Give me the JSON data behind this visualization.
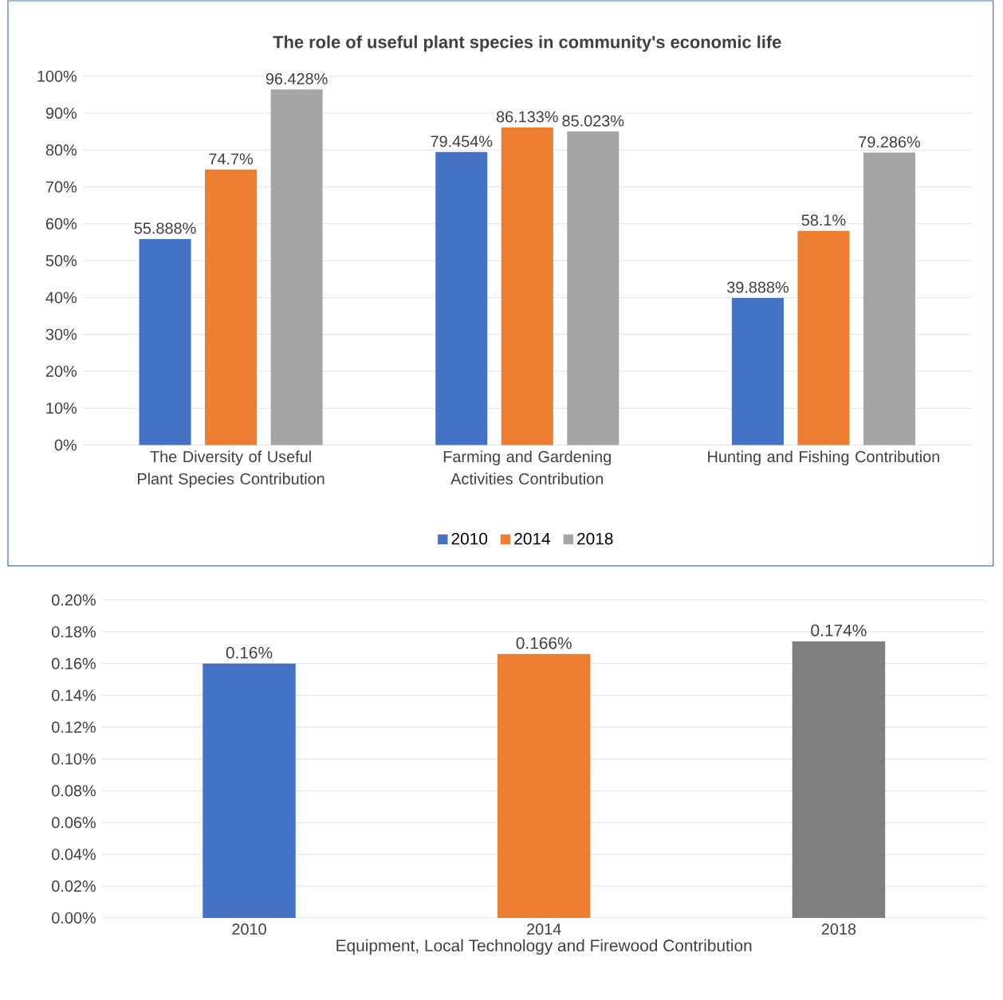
{
  "chart_data": [
    {
      "type": "bar",
      "title": "The role of useful plant species in community's economic life",
      "categories": [
        "The Diversity of Useful Plant Species Contribution",
        "Farming and Gardening Activities Contribution",
        "Hunting and Fishing Contribution"
      ],
      "series": [
        {
          "name": "2010",
          "color": "#4472c4",
          "values": [
            55.888,
            79.454,
            39.888
          ],
          "value_labels": [
            "55.888%",
            "79.454%",
            "39.888%"
          ]
        },
        {
          "name": "2014",
          "color": "#ed7d31",
          "values": [
            74.7,
            86.133,
            58.1
          ],
          "value_labels": [
            "74.7%",
            "86.133%",
            "58.1%"
          ]
        },
        {
          "name": "2018",
          "color": "#a5a5a5",
          "values": [
            96.428,
            85.023,
            79.286
          ],
          "value_labels": [
            "96.428%",
            "85.023%",
            "79.286%"
          ]
        }
      ],
      "ylim": [
        0,
        100
      ],
      "yticks": [
        {
          "value": 0,
          "label": "0%"
        },
        {
          "value": 10,
          "label": "10%"
        },
        {
          "value": 20,
          "label": "20%"
        },
        {
          "value": 30,
          "label": "30%"
        },
        {
          "value": 40,
          "label": "40%"
        },
        {
          "value": 50,
          "label": "50%"
        },
        {
          "value": 60,
          "label": "60%"
        },
        {
          "value": 70,
          "label": "70%"
        },
        {
          "value": 80,
          "label": "80%"
        },
        {
          "value": 90,
          "label": "90%"
        },
        {
          "value": 100,
          "label": "100%"
        }
      ],
      "grid": "y",
      "legend": "bottom"
    },
    {
      "type": "bar",
      "xlabel": "Equipment, Local Technology and Firewood Contribution",
      "categories": [
        "2010",
        "2014",
        "2018"
      ],
      "values": [
        0.16,
        0.166,
        0.174
      ],
      "colors": [
        "#4472c4",
        "#ed7d31",
        "#7f7f7f"
      ],
      "value_labels": [
        "0.16%",
        "0.166%",
        "0.174%"
      ],
      "ylim": [
        0,
        0.2
      ],
      "yticks": [
        {
          "value": 0,
          "label": "0.00%"
        },
        {
          "value": 0.02,
          "label": "0.02%"
        },
        {
          "value": 0.04,
          "label": "0.04%"
        },
        {
          "value": 0.06,
          "label": "0.06%"
        },
        {
          "value": 0.08,
          "label": "0.08%"
        },
        {
          "value": 0.1,
          "label": "0.10%"
        },
        {
          "value": 0.12,
          "label": "0.12%"
        },
        {
          "value": 0.14,
          "label": "0.14%"
        },
        {
          "value": 0.16,
          "label": "0.16%"
        },
        {
          "value": 0.18,
          "label": "0.18%"
        },
        {
          "value": 0.2,
          "label": "0.20%"
        }
      ],
      "grid": "y"
    }
  ]
}
